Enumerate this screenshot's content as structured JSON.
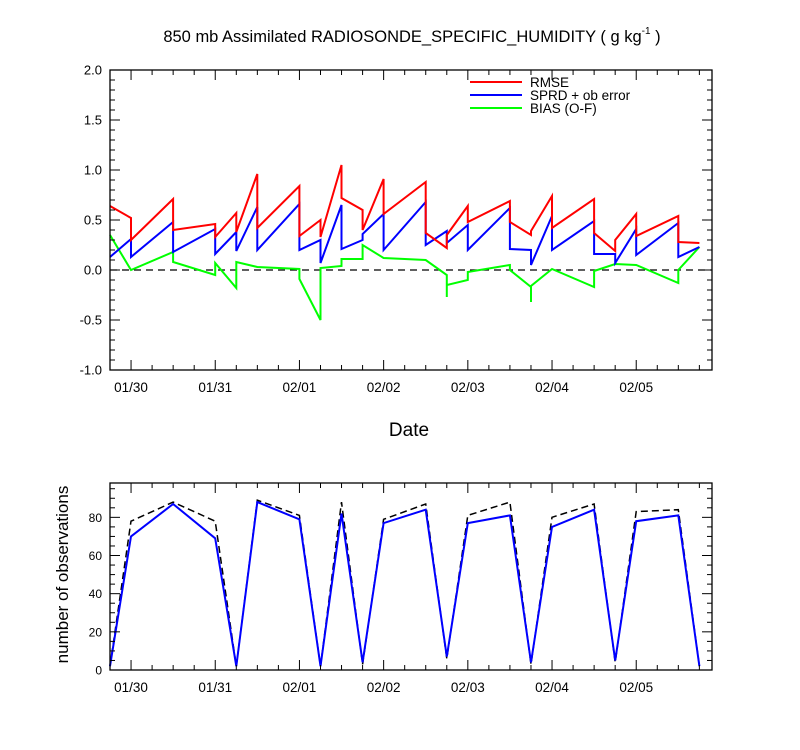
{
  "title": {
    "main": "850 mb Assimilated RADIOSONDE_SPECIFIC_HUMIDITY ( g kg",
    "unit_exponent": "-1",
    "close": " )"
  },
  "colors": {
    "rmse": "#ff0000",
    "sprd": "#0000ff",
    "bias": "#00ff00",
    "possible": "#000000",
    "used": "#0000ff"
  },
  "chart_data": [
    {
      "type": "line",
      "title": "850 mb Assimilated RADIOSONDE_SPECIFIC_HUMIDITY ( g kg-1 )",
      "xlabel": "Date",
      "ylabel": "",
      "xlim": [
        0.0,
        7.15
      ],
      "ylim": [
        -1.0,
        2.0
      ],
      "yticks": [
        "-1.0",
        "-0.5",
        "0.0",
        "0.5",
        "1.0",
        "1.5",
        "2.0"
      ],
      "ytick_values": [
        -1.0,
        -0.5,
        0.0,
        0.5,
        1.0,
        1.5,
        2.0
      ],
      "xticks": [
        "01/30",
        "01/31",
        "02/01",
        "02/02",
        "02/03",
        "02/04",
        "02/05"
      ],
      "xtick_values": [
        0.25,
        1.25,
        2.25,
        3.25,
        4.25,
        5.25,
        6.25
      ],
      "grid": false,
      "legend_position": "top-right",
      "zero_line": "dashed",
      "series": [
        {
          "name": "RMSE",
          "key": "rmse",
          "points": [
            [
              0.0,
              0.64
            ],
            [
              0.25,
              0.52
            ],
            [
              0.25,
              0.3
            ],
            [
              0.75,
              0.71
            ],
            [
              0.75,
              0.4
            ],
            [
              1.25,
              0.46
            ],
            [
              1.25,
              0.33
            ],
            [
              1.5,
              0.57
            ],
            [
              1.5,
              0.38
            ],
            [
              1.75,
              0.96
            ],
            [
              1.75,
              0.42
            ],
            [
              2.25,
              0.84
            ],
            [
              2.25,
              0.34
            ],
            [
              2.5,
              0.5
            ],
            [
              2.5,
              0.33
            ],
            [
              2.75,
              1.05
            ],
            [
              2.75,
              0.72
            ],
            [
              3.0,
              0.6
            ],
            [
              3.0,
              0.4
            ],
            [
              3.25,
              0.91
            ],
            [
              3.25,
              0.56
            ],
            [
              3.75,
              0.88
            ],
            [
              3.75,
              0.37
            ],
            [
              4.0,
              0.22
            ],
            [
              4.0,
              0.35
            ],
            [
              4.25,
              0.64
            ],
            [
              4.25,
              0.48
            ],
            [
              4.75,
              0.69
            ],
            [
              4.75,
              0.48
            ],
            [
              5.0,
              0.35
            ],
            [
              5.0,
              0.39
            ],
            [
              5.25,
              0.74
            ],
            [
              5.25,
              0.42
            ],
            [
              5.75,
              0.71
            ],
            [
              5.75,
              0.37
            ],
            [
              6.0,
              0.19
            ],
            [
              6.0,
              0.3
            ],
            [
              6.25,
              0.56
            ],
            [
              6.25,
              0.34
            ],
            [
              6.75,
              0.54
            ],
            [
              6.75,
              0.28
            ],
            [
              7.0,
              0.27
            ]
          ]
        },
        {
          "name": "SPRD + ob error",
          "key": "sprd",
          "points": [
            [
              0.0,
              0.13
            ],
            [
              0.25,
              0.31
            ],
            [
              0.25,
              0.13
            ],
            [
              0.75,
              0.48
            ],
            [
              0.75,
              0.18
            ],
            [
              1.25,
              0.41
            ],
            [
              1.25,
              0.16
            ],
            [
              1.5,
              0.38
            ],
            [
              1.5,
              0.19
            ],
            [
              1.75,
              0.63
            ],
            [
              1.75,
              0.2
            ],
            [
              2.25,
              0.66
            ],
            [
              2.25,
              0.2
            ],
            [
              2.5,
              0.3
            ],
            [
              2.5,
              0.07
            ],
            [
              2.75,
              0.65
            ],
            [
              2.75,
              0.21
            ],
            [
              3.0,
              0.3
            ],
            [
              3.0,
              0.36
            ],
            [
              3.25,
              0.56
            ],
            [
              3.25,
              0.2
            ],
            [
              3.75,
              0.68
            ],
            [
              3.75,
              0.25
            ],
            [
              4.0,
              0.39
            ],
            [
              4.0,
              0.27
            ],
            [
              4.25,
              0.45
            ],
            [
              4.25,
              0.2
            ],
            [
              4.75,
              0.62
            ],
            [
              4.75,
              0.21
            ],
            [
              5.0,
              0.2
            ],
            [
              5.0,
              0.05
            ],
            [
              5.25,
              0.54
            ],
            [
              5.25,
              0.2
            ],
            [
              5.75,
              0.49
            ],
            [
              5.75,
              0.16
            ],
            [
              6.0,
              0.16
            ],
            [
              6.0,
              0.07
            ],
            [
              6.25,
              0.41
            ],
            [
              6.25,
              0.15
            ],
            [
              6.75,
              0.47
            ],
            [
              6.75,
              0.13
            ],
            [
              7.0,
              0.23
            ]
          ]
        },
        {
          "name": "BIAS (O-F)",
          "key": "bias",
          "points": [
            [
              0.0,
              0.35
            ],
            [
              0.25,
              0.0
            ],
            [
              0.75,
              0.18
            ],
            [
              0.75,
              0.08
            ],
            [
              1.25,
              -0.05
            ],
            [
              1.25,
              0.07
            ],
            [
              1.5,
              -0.18
            ],
            [
              1.5,
              0.08
            ],
            [
              1.75,
              0.03
            ],
            [
              2.25,
              0.01
            ],
            [
              2.25,
              -0.09
            ],
            [
              2.5,
              -0.5
            ],
            [
              2.5,
              0.02
            ],
            [
              2.75,
              0.04
            ],
            [
              2.75,
              0.11
            ],
            [
              3.0,
              0.11
            ],
            [
              3.0,
              0.25
            ],
            [
              3.25,
              0.12
            ],
            [
              3.75,
              0.1
            ],
            [
              4.0,
              -0.05
            ],
            [
              4.0,
              -0.27
            ],
            [
              4.0,
              -0.15
            ],
            [
              4.25,
              -0.1
            ],
            [
              4.25,
              -0.02
            ],
            [
              4.75,
              0.05
            ],
            [
              4.75,
              0.0
            ],
            [
              5.0,
              -0.17
            ],
            [
              5.0,
              -0.32
            ],
            [
              5.0,
              -0.16
            ],
            [
              5.25,
              0.01
            ],
            [
              5.75,
              -0.17
            ],
            [
              5.75,
              -0.01
            ],
            [
              6.0,
              0.06
            ],
            [
              6.25,
              0.05
            ],
            [
              6.75,
              -0.13
            ],
            [
              6.75,
              0.0
            ],
            [
              7.0,
              0.23
            ]
          ]
        }
      ]
    },
    {
      "type": "line",
      "title": "",
      "xlabel": "",
      "ylabel": "number of observations",
      "xlim": [
        0.0,
        7.15
      ],
      "ylim": [
        0,
        98
      ],
      "yticks": [
        "0",
        "20",
        "40",
        "60",
        "80"
      ],
      "ytick_values": [
        0,
        20,
        40,
        60,
        80
      ],
      "xticks": [
        "01/30",
        "01/31",
        "02/01",
        "02/02",
        "02/03",
        "02/04",
        "02/05"
      ],
      "xtick_values": [
        0.25,
        1.25,
        2.25,
        3.25,
        4.25,
        5.25,
        6.25
      ],
      "grid": false,
      "series": [
        {
          "key": "possible",
          "dashed": true,
          "points": [
            [
              0.0,
              2
            ],
            [
              0.25,
              78
            ],
            [
              0.75,
              88
            ],
            [
              1.25,
              78
            ],
            [
              1.5,
              2
            ],
            [
              1.75,
              89
            ],
            [
              2.25,
              81
            ],
            [
              2.5,
              2
            ],
            [
              2.75,
              88
            ],
            [
              3.0,
              3
            ],
            [
              3.25,
              79
            ],
            [
              3.75,
              87
            ],
            [
              4.0,
              6
            ],
            [
              4.25,
              81
            ],
            [
              4.75,
              88
            ],
            [
              5.0,
              3
            ],
            [
              5.25,
              80
            ],
            [
              5.75,
              87
            ],
            [
              6.0,
              4
            ],
            [
              6.25,
              83
            ],
            [
              6.75,
              84
            ],
            [
              7.0,
              2
            ]
          ]
        },
        {
          "key": "used",
          "dashed": false,
          "points": [
            [
              0.0,
              2
            ],
            [
              0.25,
              70
            ],
            [
              0.75,
              87
            ],
            [
              1.25,
              69
            ],
            [
              1.5,
              2
            ],
            [
              1.75,
              88
            ],
            [
              2.25,
              79
            ],
            [
              2.5,
              2
            ],
            [
              2.75,
              82
            ],
            [
              3.0,
              4
            ],
            [
              3.25,
              77
            ],
            [
              3.75,
              84
            ],
            [
              4.0,
              7
            ],
            [
              4.25,
              77
            ],
            [
              4.75,
              81
            ],
            [
              5.0,
              4
            ],
            [
              5.25,
              75
            ],
            [
              5.75,
              84
            ],
            [
              6.0,
              5
            ],
            [
              6.25,
              78
            ],
            [
              6.75,
              81
            ],
            [
              7.0,
              2
            ]
          ]
        }
      ]
    }
  ]
}
